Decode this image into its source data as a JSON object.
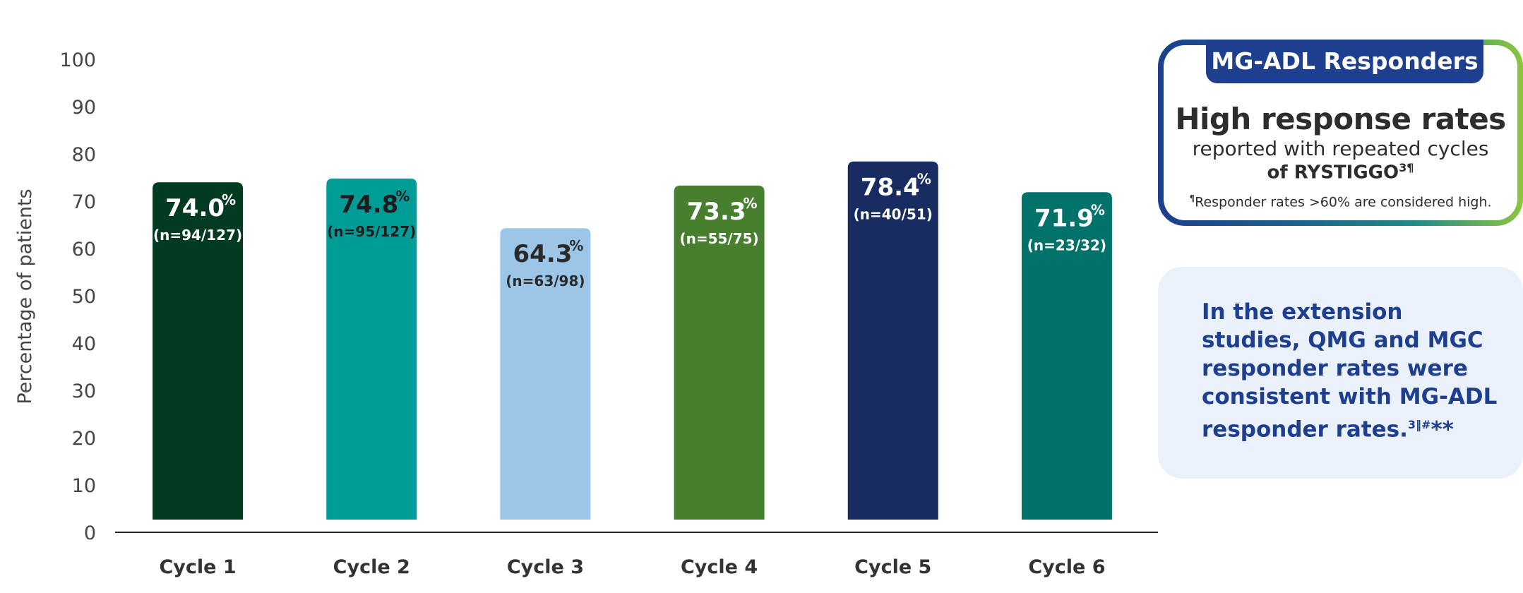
{
  "chart_data": {
    "type": "bar",
    "categories": [
      "Cycle 1",
      "Cycle 2",
      "Cycle 3",
      "Cycle 4",
      "Cycle 5",
      "Cycle 6"
    ],
    "values": [
      74.0,
      74.8,
      64.3,
      73.3,
      78.4,
      71.9
    ],
    "value_labels": [
      "74.0",
      "74.8",
      "64.3",
      "73.3",
      "78.4",
      "71.9"
    ],
    "value_unit": "%",
    "n_labels": [
      "(n=94/127)",
      "(n=95/127)",
      "(n=63/98)",
      "(n=55/75)",
      "(n=40/51)",
      "(n=23/32)"
    ],
    "bar_colors": [
      "#033a22",
      "#009d98",
      "#9cc6e8",
      "#477f2f",
      "#182c62",
      "#00726a"
    ],
    "label_colors": [
      "#ffffff",
      "#1c1c1c",
      "#2a2a2a",
      "#ffffff",
      "#ffffff",
      "#ffffff"
    ],
    "ylabel": "Percentage of patients",
    "xlabel": "",
    "ylim": [
      0,
      100
    ],
    "yticks": [
      0,
      10,
      20,
      30,
      40,
      50,
      60,
      70,
      80,
      90,
      100
    ],
    "grid": false
  },
  "responders": {
    "tab": "MG-ADL Responders",
    "title": "High response rates",
    "subtitle": "reported with repeated cycles",
    "brand": "of RYSTIGGO",
    "brand_sup": "3¶",
    "note_sup": "¶",
    "note": "Responder rates >60% are considered high."
  },
  "extension": {
    "text": "In the extension studies, QMG and MGC responder rates were consistent with MG-ADL responder rates.",
    "sup": "3‖#",
    "stars": "**"
  }
}
